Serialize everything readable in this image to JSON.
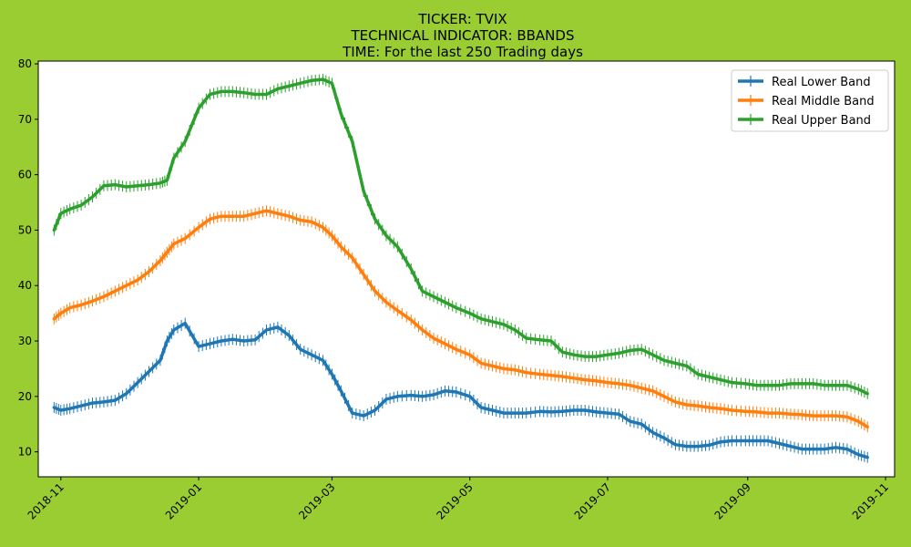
{
  "chart_data": {
    "type": "line",
    "title_lines": [
      "TICKER:  TVIX",
      "TECHNICAL INDICATOR:  BBANDS",
      "TIME: For the last 250 Trading days"
    ],
    "xlabel": "",
    "ylabel": "",
    "ylim": [
      5.5,
      80.5
    ],
    "xlim": [
      "2018-10-22",
      "2019-11-05"
    ],
    "y_ticks": [
      10,
      20,
      30,
      40,
      50,
      60,
      70,
      80
    ],
    "x_ticks": [
      "2018-11",
      "2019-01",
      "2019-03",
      "2019-05",
      "2019-07",
      "2019-09",
      "2019-11"
    ],
    "x_tick_dates": [
      "2018-11-01",
      "2019-01-01",
      "2019-03-01",
      "2019-05-01",
      "2019-07-01",
      "2019-09-01",
      "2019-11-01"
    ],
    "legend_position": "upper right",
    "marker": "vertical tick",
    "x": [
      "2018-10-29",
      "2018-11-01",
      "2018-11-05",
      "2018-11-10",
      "2018-11-15",
      "2018-11-20",
      "2018-11-25",
      "2018-11-30",
      "2018-12-05",
      "2018-12-10",
      "2018-12-15",
      "2018-12-18",
      "2018-12-21",
      "2018-12-26",
      "2019-01-01",
      "2019-01-06",
      "2019-01-11",
      "2019-01-16",
      "2019-01-21",
      "2019-01-26",
      "2019-01-31",
      "2019-02-05",
      "2019-02-10",
      "2019-02-15",
      "2019-02-20",
      "2019-02-25",
      "2019-03-01",
      "2019-03-05",
      "2019-03-10",
      "2019-03-15",
      "2019-03-20",
      "2019-03-25",
      "2019-03-30",
      "2019-04-05",
      "2019-04-10",
      "2019-04-15",
      "2019-04-20",
      "2019-04-25",
      "2019-05-01",
      "2019-05-06",
      "2019-05-11",
      "2019-05-16",
      "2019-05-21",
      "2019-05-26",
      "2019-06-01",
      "2019-06-06",
      "2019-06-11",
      "2019-06-16",
      "2019-06-21",
      "2019-06-26",
      "2019-07-01",
      "2019-07-06",
      "2019-07-11",
      "2019-07-16",
      "2019-07-21",
      "2019-07-26",
      "2019-07-31",
      "2019-08-05",
      "2019-08-10",
      "2019-08-15",
      "2019-08-20",
      "2019-08-25",
      "2019-08-31",
      "2019-09-05",
      "2019-09-10",
      "2019-09-15",
      "2019-09-20",
      "2019-09-25",
      "2019-09-30",
      "2019-10-05",
      "2019-10-10",
      "2019-10-15",
      "2019-10-20",
      "2019-10-24"
    ],
    "series": [
      {
        "name": "Real Lower Band",
        "color": "#1f77b4",
        "values": [
          18,
          17.5,
          17.8,
          18.3,
          18.8,
          19,
          19.3,
          20.5,
          22.5,
          24.5,
          26.5,
          30,
          32,
          33.2,
          29,
          29.5,
          30,
          30.3,
          30,
          30.2,
          32,
          32.5,
          31,
          28.5,
          27.5,
          26.5,
          24,
          21,
          17,
          16.5,
          17.5,
          19.5,
          20,
          20.2,
          20,
          20.3,
          21,
          20.8,
          20,
          18,
          17.5,
          17,
          17,
          17,
          17.3,
          17.2,
          17.3,
          17.5,
          17.5,
          17.2,
          17,
          16.8,
          15.5,
          15,
          13.5,
          12.5,
          11.3,
          11,
          11,
          11.2,
          11.8,
          12,
          12,
          12,
          12,
          11.5,
          11,
          10.5,
          10.5,
          10.5,
          10.8,
          10.5,
          9.5,
          9
        ]
      },
      {
        "name": "Real Middle Band",
        "color": "#ff7f0e",
        "values": [
          34,
          35,
          36,
          36.5,
          37.2,
          38,
          39,
          40,
          41,
          42.5,
          44.5,
          46,
          47.5,
          48.5,
          50.5,
          52,
          52.5,
          52.5,
          52.5,
          53,
          53.5,
          53,
          52.5,
          51.8,
          51.5,
          50.5,
          49,
          47,
          45,
          42,
          39,
          37,
          35.5,
          33.8,
          32,
          30.5,
          29.5,
          28.5,
          27.5,
          26,
          25.5,
          25,
          24.8,
          24.3,
          24,
          23.8,
          23.6,
          23.3,
          23,
          22.8,
          22.5,
          22.3,
          22,
          21.5,
          21,
          20,
          19,
          18.5,
          18.3,
          18,
          17.8,
          17.5,
          17.3,
          17.2,
          17,
          17,
          16.8,
          16.7,
          16.5,
          16.5,
          16.5,
          16.3,
          15.5,
          14.5
        ]
      },
      {
        "name": "Real Upper Band",
        "color": "#2ca02c",
        "values": [
          50,
          53,
          53.8,
          54.5,
          56,
          58,
          58.2,
          57.8,
          58,
          58.2,
          58.5,
          59,
          63,
          66,
          72,
          74.5,
          75,
          75,
          74.8,
          74.5,
          74.5,
          75.5,
          76,
          76.5,
          77,
          77.2,
          76.5,
          71,
          66,
          57,
          52,
          49,
          47,
          43,
          39,
          38,
          37,
          36,
          35,
          34,
          33.5,
          33,
          32,
          30.5,
          30.2,
          30,
          28,
          27.5,
          27.2,
          27.2,
          27.5,
          27.8,
          28.3,
          28.5,
          27.5,
          26.5,
          26,
          25.5,
          24,
          23.5,
          23,
          22.5,
          22.3,
          22,
          22,
          22,
          22.3,
          22.3,
          22.3,
          22,
          22,
          22,
          21.3,
          20.5
        ]
      }
    ]
  }
}
